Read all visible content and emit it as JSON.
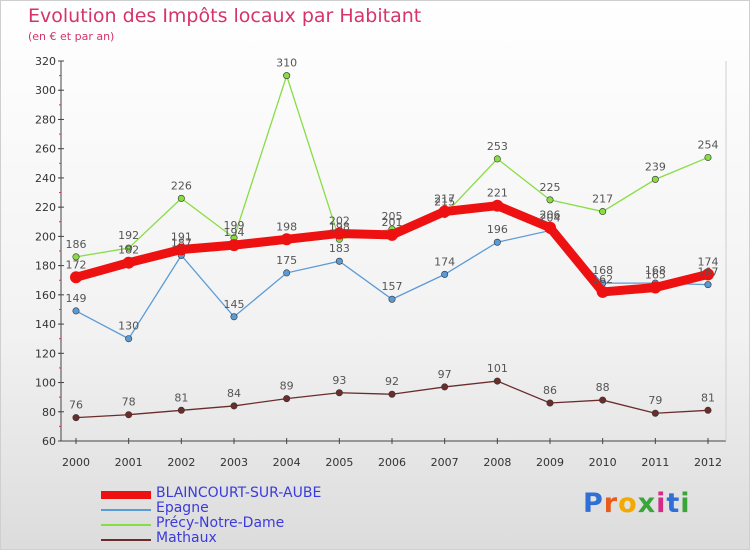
{
  "header": {
    "title": "Evolution des Impôts locaux par Habitant",
    "subtitle": "(en € et par an)"
  },
  "logo": {
    "letters": [
      "P",
      "r",
      "o",
      "x",
      "i",
      "t",
      "i"
    ],
    "colors": [
      "#2f6fd6",
      "#e85d1a",
      "#f2a900",
      "#3aa63a",
      "#d42a8a",
      "#2f6fd6",
      "#3aa63a"
    ]
  },
  "chart_data": {
    "type": "line",
    "x": [
      "2000",
      "2001",
      "2002",
      "2003",
      "2004",
      "2005",
      "2006",
      "2007",
      "2008",
      "2009",
      "2010",
      "2011",
      "2012"
    ],
    "ylim": [
      60,
      320
    ],
    "yticks": [
      60,
      80,
      100,
      120,
      140,
      160,
      180,
      200,
      220,
      240,
      260,
      280,
      300,
      320
    ],
    "grid": false,
    "legend_position": "bottom-left",
    "series": [
      {
        "name": "BLAINCOURT-SUR-AUBE",
        "values": [
          172,
          182,
          191,
          194,
          198,
          202,
          201,
          217,
          221,
          206,
          162,
          165,
          174
        ],
        "color": "#ee1111",
        "emphasis": true
      },
      {
        "name": "Epagne",
        "values": [
          149,
          130,
          187,
          145,
          175,
          183,
          157,
          174,
          196,
          204,
          168,
          168,
          167
        ],
        "color": "#5b9bd5"
      },
      {
        "name": "Précy-Notre-Dame",
        "values": [
          186,
          192,
          226,
          199,
          310,
          198,
          205,
          215,
          253,
          225,
          217,
          239,
          254
        ],
        "color": "#88dd44"
      },
      {
        "name": "Mathaux",
        "values": [
          76,
          78,
          81,
          84,
          89,
          93,
          92,
          97,
          101,
          86,
          88,
          79,
          81
        ],
        "color": "#6b2c2c"
      }
    ]
  }
}
